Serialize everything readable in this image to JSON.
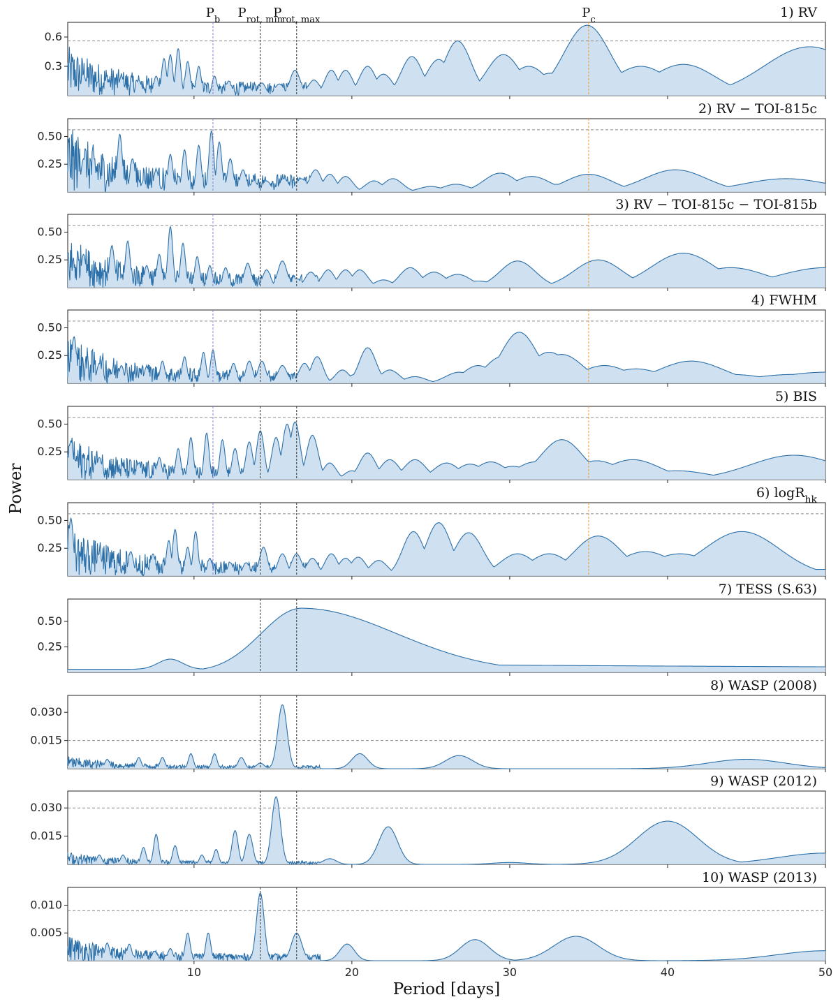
{
  "chart_data": {
    "type": "area",
    "xlabel": "Period [days]",
    "ylabel": "Power",
    "xlim": [
      2,
      50
    ],
    "x_ticks": [
      10,
      20,
      30,
      40,
      50
    ],
    "colors": {
      "line": "#2b6fa8",
      "fill": "#c7dcee",
      "threshold": "#8a8a8a",
      "pb_marker": "#8a7fcf",
      "prot_marker": "#333333",
      "pc_marker": "#f29a2e"
    },
    "markers": [
      {
        "label": "P",
        "sub": "b",
        "period": 11.2,
        "style": "pb"
      },
      {
        "label": "P",
        "sub": "rot, min",
        "period": 14.2,
        "style": "prot"
      },
      {
        "label": "P",
        "sub": "rot, max",
        "period": 16.5,
        "style": "prot"
      },
      {
        "label": "P",
        "sub": "c",
        "period": 35.0,
        "style": "pc"
      }
    ],
    "panels": [
      {
        "title": "1) RV",
        "ylim": [
          0,
          0.75
        ],
        "yticks": [
          0.3,
          0.6
        ],
        "tick_labels": [
          "0.3",
          "0.6"
        ],
        "threshold": 0.56,
        "marker_lines": [
          "pb",
          "prot",
          "pc"
        ],
        "peaks": [
          [
            3.0,
            0.22
          ],
          [
            4.5,
            0.14
          ],
          [
            5.4,
            0.2
          ],
          [
            6.5,
            0.16
          ],
          [
            7.6,
            0.2
          ],
          [
            8.1,
            0.38
          ],
          [
            8.5,
            0.42
          ],
          [
            9.0,
            0.48
          ],
          [
            9.6,
            0.35
          ],
          [
            10.3,
            0.3
          ],
          [
            11.3,
            0.2
          ],
          [
            12.2,
            0.15
          ],
          [
            13.5,
            0.08
          ],
          [
            14.3,
            0.13
          ],
          [
            15.4,
            0.12
          ],
          [
            16.4,
            0.26
          ],
          [
            17.6,
            0.16
          ],
          [
            18.7,
            0.26
          ],
          [
            19.6,
            0.26
          ],
          [
            21.0,
            0.3
          ],
          [
            22.0,
            0.22
          ],
          [
            23.0,
            0.12
          ],
          [
            23.8,
            0.4
          ],
          [
            24.7,
            0.05
          ],
          [
            25.5,
            0.37
          ],
          [
            26.7,
            0.56
          ],
          [
            28.5,
            0.04
          ],
          [
            29.6,
            0.42
          ],
          [
            31.2,
            0.3
          ],
          [
            32.6,
            0.23
          ],
          [
            34.9,
            0.72
          ],
          [
            36.5,
            0.06
          ],
          [
            38.3,
            0.3
          ],
          [
            41.0,
            0.32
          ],
          [
            43.5,
            0.06
          ],
          [
            49.0,
            0.5
          ]
        ],
        "noise": 0.38
      },
      {
        "title": "2) RV − TOI-815c",
        "ylim": [
          0,
          0.66
        ],
        "yticks": [
          0.25,
          0.5
        ],
        "tick_labels": [
          "0.25",
          "0.50"
        ],
        "threshold": 0.56,
        "marker_lines": [
          "pb",
          "prot",
          "pc"
        ],
        "peaks": [
          [
            3.0,
            0.3
          ],
          [
            5.3,
            0.52
          ],
          [
            6.1,
            0.3
          ],
          [
            6.8,
            0.1
          ],
          [
            7.6,
            0.2
          ],
          [
            8.5,
            0.34
          ],
          [
            9.4,
            0.38
          ],
          [
            10.3,
            0.42
          ],
          [
            11.1,
            0.55
          ],
          [
            11.6,
            0.45
          ],
          [
            12.3,
            0.3
          ],
          [
            13.1,
            0.2
          ],
          [
            13.8,
            0.1
          ],
          [
            14.6,
            0.1
          ],
          [
            15.7,
            0.12
          ],
          [
            16.8,
            0.12
          ],
          [
            17.7,
            0.2
          ],
          [
            18.6,
            0.16
          ],
          [
            19.6,
            0.14
          ],
          [
            21.4,
            0.1
          ],
          [
            22.6,
            0.12
          ],
          [
            25.0,
            0.05
          ],
          [
            26.6,
            0.07
          ],
          [
            29.4,
            0.17
          ],
          [
            31.4,
            0.14
          ],
          [
            33.1,
            0.07
          ],
          [
            35.0,
            0.16
          ],
          [
            40.5,
            0.2
          ],
          [
            43.6,
            0.02
          ],
          [
            47.5,
            0.12
          ]
        ],
        "noise": 0.45
      },
      {
        "title": "3) RV − TOI-815c − TOI-815b",
        "ylim": [
          0,
          0.66
        ],
        "yticks": [
          0.25,
          0.5
        ],
        "tick_labels": [
          "0.25",
          "0.50"
        ],
        "threshold": 0.56,
        "marker_lines": [
          "pb",
          "prot",
          "pc"
        ],
        "peaks": [
          [
            3.0,
            0.3
          ],
          [
            4.8,
            0.38
          ],
          [
            5.8,
            0.42
          ],
          [
            7.0,
            0.2
          ],
          [
            7.8,
            0.3
          ],
          [
            8.5,
            0.55
          ],
          [
            9.3,
            0.4
          ],
          [
            10.2,
            0.28
          ],
          [
            11.0,
            0.2
          ],
          [
            12.0,
            0.18
          ],
          [
            13.4,
            0.22
          ],
          [
            14.6,
            0.16
          ],
          [
            15.6,
            0.24
          ],
          [
            16.5,
            0.08
          ],
          [
            17.4,
            0.14
          ],
          [
            18.5,
            0.16
          ],
          [
            19.6,
            0.16
          ],
          [
            20.5,
            0.16
          ],
          [
            22.0,
            0.07
          ],
          [
            23.7,
            0.18
          ],
          [
            25.2,
            0.14
          ],
          [
            26.7,
            0.12
          ],
          [
            28.0,
            0.06
          ],
          [
            30.5,
            0.24
          ],
          [
            33.5,
            0.04
          ],
          [
            35.6,
            0.25
          ],
          [
            37.8,
            0.07
          ],
          [
            41.0,
            0.31
          ],
          [
            44.0,
            0.18
          ],
          [
            47.0,
            0.02
          ],
          [
            50.0,
            0.18
          ]
        ],
        "noise": 0.35
      },
      {
        "title": "4) FWHM",
        "ylim": [
          0,
          0.66
        ],
        "yticks": [
          0.25,
          0.5
        ],
        "tick_labels": [
          "0.25",
          "0.50"
        ],
        "threshold": 0.56,
        "marker_lines": [
          "pb",
          "prot",
          "pc"
        ],
        "peaks": [
          [
            2.4,
            0.42
          ],
          [
            4.0,
            0.18
          ],
          [
            5.4,
            0.16
          ],
          [
            7.0,
            0.15
          ],
          [
            8.0,
            0.2
          ],
          [
            9.4,
            0.24
          ],
          [
            10.6,
            0.28
          ],
          [
            11.2,
            0.3
          ],
          [
            12.5,
            0.18
          ],
          [
            13.5,
            0.2
          ],
          [
            14.3,
            0.2
          ],
          [
            15.6,
            0.16
          ],
          [
            17.0,
            0.18
          ],
          [
            17.8,
            0.24
          ],
          [
            19.4,
            0.12
          ],
          [
            20.2,
            0.08
          ],
          [
            21.0,
            0.32
          ],
          [
            22.4,
            0.12
          ],
          [
            24.0,
            0.06
          ],
          [
            26.8,
            0.1
          ],
          [
            28.0,
            0.16
          ],
          [
            29.5,
            0.24
          ],
          [
            30.6,
            0.46
          ],
          [
            32.5,
            0.28
          ],
          [
            33.3,
            0.26
          ],
          [
            34.3,
            0.12
          ],
          [
            36.0,
            0.16
          ],
          [
            38.0,
            0.13
          ],
          [
            40.5,
            0.02
          ],
          [
            41.5,
            0.2
          ],
          [
            44.0,
            0.08
          ],
          [
            48.0,
            0.08
          ],
          [
            50.0,
            0.1
          ]
        ],
        "noise": 0.32
      },
      {
        "title": "5) BIS",
        "ylim": [
          0,
          0.66
        ],
        "yticks": [
          0.25,
          0.5
        ],
        "tick_labels": [
          "0.25",
          "0.50"
        ],
        "threshold": 0.56,
        "marker_lines": [
          "pb",
          "prot",
          "pc"
        ],
        "peaks": [
          [
            2.2,
            0.35
          ],
          [
            4.0,
            0.2
          ],
          [
            6.5,
            0.15
          ],
          [
            7.8,
            0.2
          ],
          [
            9.0,
            0.28
          ],
          [
            9.8,
            0.38
          ],
          [
            10.8,
            0.42
          ],
          [
            11.8,
            0.36
          ],
          [
            12.6,
            0.28
          ],
          [
            13.5,
            0.34
          ],
          [
            14.2,
            0.44
          ],
          [
            15.2,
            0.38
          ],
          [
            15.9,
            0.5
          ],
          [
            16.4,
            0.52
          ],
          [
            17.5,
            0.4
          ],
          [
            18.6,
            0.15
          ],
          [
            20.0,
            0.08
          ],
          [
            21.0,
            0.24
          ],
          [
            22.4,
            0.18
          ],
          [
            24.0,
            0.18
          ],
          [
            26.0,
            0.15
          ],
          [
            27.5,
            0.14
          ],
          [
            28.8,
            0.16
          ],
          [
            30.2,
            0.12
          ],
          [
            31.6,
            0.16
          ],
          [
            33.3,
            0.36
          ],
          [
            35.5,
            0.17
          ],
          [
            37.8,
            0.18
          ],
          [
            40.6,
            0.08
          ],
          [
            42.5,
            0.02
          ],
          [
            48.0,
            0.22
          ]
        ],
        "noise": 0.3
      },
      {
        "title": "6) logR",
        "title_sub": "hk",
        "ylim": [
          0,
          0.66
        ],
        "yticks": [
          0.25,
          0.5
        ],
        "tick_labels": [
          "0.25",
          "0.50"
        ],
        "threshold": 0.56,
        "marker_lines": [
          "pb",
          "prot",
          "pc"
        ],
        "peaks": [
          [
            2.2,
            0.52
          ],
          [
            4.0,
            0.2
          ],
          [
            6.0,
            0.22
          ],
          [
            7.4,
            0.2
          ],
          [
            8.4,
            0.32
          ],
          [
            8.8,
            0.42
          ],
          [
            9.6,
            0.26
          ],
          [
            10.1,
            0.4
          ],
          [
            11.0,
            0.16
          ],
          [
            12.3,
            0.12
          ],
          [
            13.3,
            0.12
          ],
          [
            14.4,
            0.26
          ],
          [
            15.6,
            0.2
          ],
          [
            16.5,
            0.2
          ],
          [
            17.5,
            0.16
          ],
          [
            18.7,
            0.2
          ],
          [
            19.6,
            0.16
          ],
          [
            20.4,
            0.17
          ],
          [
            21.7,
            0.14
          ],
          [
            23.9,
            0.4
          ],
          [
            25.5,
            0.48
          ],
          [
            27.0,
            0.08
          ],
          [
            27.4,
            0.39
          ],
          [
            29.3,
            0.04
          ],
          [
            30.5,
            0.2
          ],
          [
            32.5,
            0.2
          ],
          [
            34.5,
            0.01
          ],
          [
            35.6,
            0.36
          ],
          [
            38.6,
            0.22
          ],
          [
            40.8,
            0.2
          ],
          [
            44.7,
            0.4
          ],
          [
            50.0,
            0.06
          ]
        ],
        "noise": 0.35
      },
      {
        "title": "7) TESS (S.63)",
        "ylim": [
          0,
          0.72
        ],
        "yticks": [
          0.25,
          0.5
        ],
        "tick_labels": [
          "0.25",
          "0.50"
        ],
        "threshold": null,
        "marker_lines": [
          "prot"
        ],
        "peaks": [],
        "noise": 0
      },
      {
        "title": "8) WASP (2008)",
        "ylim": [
          0,
          0.039
        ],
        "yticks": [
          0.015,
          0.03
        ],
        "tick_labels": [
          "0.015",
          "0.030"
        ],
        "threshold": 0.015,
        "marker_lines": [
          "prot"
        ],
        "peaks": [
          [
            4.5,
            0.005
          ],
          [
            6.5,
            0.006
          ],
          [
            8.0,
            0.006
          ],
          [
            9.8,
            0.008
          ],
          [
            11.3,
            0.008
          ],
          [
            13.0,
            0.006
          ],
          [
            14.2,
            0.003
          ],
          [
            15.6,
            0.034
          ],
          [
            20.5,
            0.008
          ],
          [
            26.8,
            0.007
          ],
          [
            45.0,
            0.005
          ]
        ],
        "noise": 0.005
      },
      {
        "title": "9) WASP (2012)",
        "ylim": [
          0,
          0.039
        ],
        "yticks": [
          0.015,
          0.03
        ],
        "tick_labels": [
          "0.015",
          "0.030"
        ],
        "threshold": 0.03,
        "marker_lines": [
          "prot"
        ],
        "peaks": [
          [
            4.0,
            0.005
          ],
          [
            5.5,
            0.005
          ],
          [
            6.8,
            0.009
          ],
          [
            7.6,
            0.016
          ],
          [
            8.8,
            0.01
          ],
          [
            10.5,
            0.005
          ],
          [
            11.4,
            0.008
          ],
          [
            12.6,
            0.018
          ],
          [
            13.5,
            0.016
          ],
          [
            15.2,
            0.036
          ],
          [
            18.6,
            0.003
          ],
          [
            22.3,
            0.02
          ],
          [
            30.0,
            0.001
          ],
          [
            40.0,
            0.023
          ],
          [
            50.0,
            0.006
          ]
        ],
        "noise": 0.005
      },
      {
        "title": "10) WASP (2013)",
        "ylim": [
          0,
          0.0132
        ],
        "yticks": [
          0.005,
          0.01
        ],
        "tick_labels": [
          "0.005",
          "0.010"
        ],
        "threshold": 0.009,
        "marker_lines": [
          "prot"
        ],
        "peaks": [
          [
            4.5,
            0.0032
          ],
          [
            5.9,
            0.003
          ],
          [
            7.5,
            0.0017
          ],
          [
            8.5,
            0.0022
          ],
          [
            9.6,
            0.005
          ],
          [
            10.9,
            0.005
          ],
          [
            14.2,
            0.0122
          ],
          [
            16.5,
            0.005
          ],
          [
            19.7,
            0.003
          ],
          [
            27.8,
            0.0038
          ],
          [
            34.2,
            0.0044
          ],
          [
            50.0,
            0.0018
          ]
        ],
        "noise": 0.0035
      }
    ]
  }
}
